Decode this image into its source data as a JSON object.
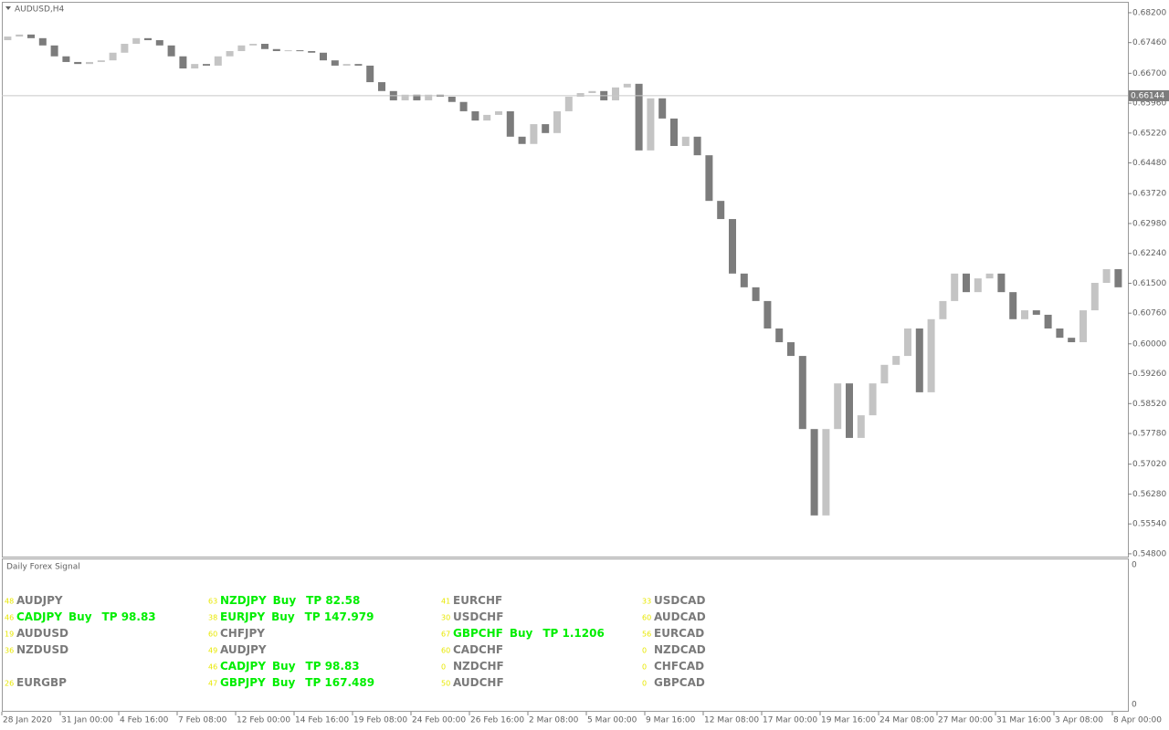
{
  "chart_data": {
    "type": "candlestick",
    "title": "AUDUSD,H4",
    "categories": [
      "28 Jan 2020",
      null,
      null,
      null,
      null,
      "31 Jan 00:00",
      null,
      null,
      null,
      null,
      "4 Feb 16:00",
      null,
      null,
      null,
      null,
      "7 Feb 08:00",
      null,
      null,
      null,
      null,
      "12 Feb 00:00",
      null,
      null,
      null,
      null,
      "14 Feb 16:00",
      null,
      null,
      null,
      null,
      "19 Feb 08:00",
      null,
      null,
      null,
      null,
      "24 Feb 00:00",
      null,
      null,
      null,
      null,
      "26 Feb 16:00",
      null,
      null,
      null,
      null,
      "2 Mar 08:00",
      null,
      null,
      null,
      null,
      "5 Mar 00:00",
      null,
      null,
      null,
      null,
      "9 Mar 16:00",
      null,
      null,
      null,
      null,
      "12 Mar 08:00",
      null,
      null,
      null,
      null,
      "17 Mar 00:00",
      null,
      null,
      null,
      null,
      "19 Mar 16:00",
      null,
      null,
      null,
      null,
      "24 Mar 08:00",
      null,
      null,
      null,
      null,
      "27 Mar 00:00",
      null,
      null,
      null,
      null,
      "31 Mar 16:00",
      null,
      null,
      null,
      null,
      "3 Apr 08:00",
      null,
      null,
      null,
      null,
      "8 Apr 00:00"
    ],
    "open": [
      0.6752,
      0.6761,
      0.6766,
      0.6757,
      0.6739,
      0.6712,
      0.6698,
      0.6693,
      0.6698,
      0.6702,
      0.6721,
      0.6743,
      0.6757,
      0.6752,
      0.6739,
      0.6712,
      0.6682,
      0.6693,
      0.6689,
      0.6712,
      0.6725,
      0.6739,
      0.6743,
      0.673,
      0.6725,
      0.6727,
      0.6725,
      0.6721,
      0.6702,
      0.6689,
      0.6693,
      0.6689,
      0.6648,
      0.6626,
      0.6603,
      0.6617,
      0.6603,
      0.6617,
      0.6612,
      0.6599,
      0.6576,
      0.6553,
      0.6567,
      0.6576,
      0.6513,
      0.6495,
      0.6544,
      0.6522,
      0.6576,
      0.6612,
      0.6621,
      0.6626,
      0.6603,
      0.6635,
      0.6644,
      0.6479,
      0.6608,
      0.6558,
      0.649,
      0.6513,
      0.6467,
      0.6354,
      0.6309,
      0.6174,
      0.614,
      0.6106,
      0.6038,
      0.6004,
      0.597,
      0.5789,
      0.5575,
      0.5789,
      0.5902,
      0.5767,
      0.5823,
      0.5902,
      0.5948,
      0.597,
      0.6038,
      0.588,
      0.6061,
      0.6106,
      0.6174,
      0.6128,
      0.6162,
      0.6174,
      0.6128,
      0.6061,
      0.6083,
      0.6072,
      0.6038,
      0.6015,
      0.6004,
      0.6083,
      0.6151,
      0.6185
    ],
    "close": [
      0.6761,
      0.6766,
      0.6757,
      0.6739,
      0.6712,
      0.6698,
      0.6693,
      0.6698,
      0.6702,
      0.6721,
      0.6743,
      0.6757,
      0.6752,
      0.6739,
      0.6712,
      0.6682,
      0.6693,
      0.6689,
      0.6712,
      0.6725,
      0.6739,
      0.6743,
      0.673,
      0.6725,
      0.6727,
      0.6725,
      0.6721,
      0.6702,
      0.6689,
      0.6693,
      0.6689,
      0.6648,
      0.6626,
      0.6603,
      0.6617,
      0.6603,
      0.6617,
      0.6612,
      0.6599,
      0.6576,
      0.6553,
      0.6567,
      0.6576,
      0.6513,
      0.6495,
      0.6544,
      0.6522,
      0.6576,
      0.6612,
      0.6621,
      0.6626,
      0.6603,
      0.6635,
      0.6644,
      0.6479,
      0.6608,
      0.6558,
      0.649,
      0.6513,
      0.6467,
      0.6354,
      0.6309,
      0.6174,
      0.614,
      0.6106,
      0.6038,
      0.6004,
      0.597,
      0.5789,
      0.5575,
      0.5789,
      0.5902,
      0.5767,
      0.5823,
      0.5902,
      0.5948,
      0.597,
      0.6038,
      0.588,
      0.6061,
      0.6106,
      0.6174,
      0.6128,
      0.6162,
      0.6174,
      0.6128,
      0.6061,
      0.6083,
      0.6072,
      0.6038,
      0.6015,
      0.6004,
      0.6083,
      0.6151,
      0.6185,
      0.614
    ],
    "up_color": "#c4c4c4",
    "down_color": "#7c7c7c",
    "ylim": [
      0.5473,
      0.6847
    ],
    "yticks": [
      {
        "value": 0.682,
        "label": "0.68200"
      },
      {
        "value": 0.6746,
        "label": "0.67460"
      },
      {
        "value": 0.667,
        "label": "0.66700"
      },
      {
        "value": 0.6596,
        "label": "0.65960"
      },
      {
        "value": 0.6522,
        "label": "0.65220"
      },
      {
        "value": 0.6448,
        "label": "0.64480"
      },
      {
        "value": 0.6372,
        "label": "0.63720"
      },
      {
        "value": 0.6298,
        "label": "0.62980"
      },
      {
        "value": 0.6224,
        "label": "0.62240"
      },
      {
        "value": 0.615,
        "label": "0.61500"
      },
      {
        "value": 0.6076,
        "label": "0.60760"
      },
      {
        "value": 0.6,
        "label": "0.60000"
      },
      {
        "value": 0.5926,
        "label": "0.59260"
      },
      {
        "value": 0.5852,
        "label": "0.58520"
      },
      {
        "value": 0.5778,
        "label": "0.57780"
      },
      {
        "value": 0.5702,
        "label": "0.57020"
      },
      {
        "value": 0.5628,
        "label": "0.56280"
      },
      {
        "value": 0.5554,
        "label": "0.55540"
      },
      {
        "value": 0.548,
        "label": "0.54800"
      }
    ],
    "current_price": {
      "value": 0.66144,
      "label": "0.66144"
    },
    "grid": false
  },
  "indicator": {
    "title": "Daily Forex Signal",
    "scale_labels": [
      0,
      0
    ],
    "colors": {
      "count": "#e8e800",
      "pair": "#7a7a7a",
      "signal": "#00ee00"
    },
    "columns": [
      [
        {
          "count": 48,
          "pair": "AUDJPY"
        },
        {
          "count": 46,
          "pair": "CADJPY",
          "signal": "Buy",
          "tp": "TP 98.83"
        },
        {
          "count": 19,
          "pair": "AUDUSD"
        },
        {
          "count": 36,
          "pair": "NZDUSD"
        },
        null,
        {
          "count": 26,
          "pair": "EURGBP"
        }
      ],
      [
        {
          "count": 63,
          "pair": "NZDJPY",
          "signal": "Buy",
          "tp": "TP 82.58"
        },
        {
          "count": 38,
          "pair": "EURJPY",
          "signal": "Buy",
          "tp": "TP 147.979"
        },
        {
          "count": 60,
          "pair": "CHFJPY"
        },
        {
          "count": 49,
          "pair": "AUDJPY"
        },
        {
          "count": 46,
          "pair": "CADJPY",
          "signal": "Buy",
          "tp": "TP 98.83"
        },
        {
          "count": 47,
          "pair": "GBPJPY",
          "signal": "Buy",
          "tp": "TP 167.489"
        }
      ],
      [
        {
          "count": 41,
          "pair": "EURCHF"
        },
        {
          "count": 30,
          "pair": "USDCHF"
        },
        {
          "count": 67,
          "pair": "GBPCHF",
          "signal": "Buy",
          "tp": "TP 1.1206"
        },
        {
          "count": 60,
          "pair": "CADCHF"
        },
        {
          "count": 0,
          "pair": "NZDCHF"
        },
        {
          "count": 50,
          "pair": "AUDCHF"
        }
      ],
      [
        {
          "count": 33,
          "pair": "USDCAD"
        },
        {
          "count": 60,
          "pair": "AUDCAD"
        },
        {
          "count": 56,
          "pair": "EURCAD"
        },
        {
          "count": 0,
          "pair": "NZDCAD"
        },
        {
          "count": 0,
          "pair": "CHFCAD"
        },
        {
          "count": 0,
          "pair": "GBPCAD"
        }
      ]
    ]
  }
}
